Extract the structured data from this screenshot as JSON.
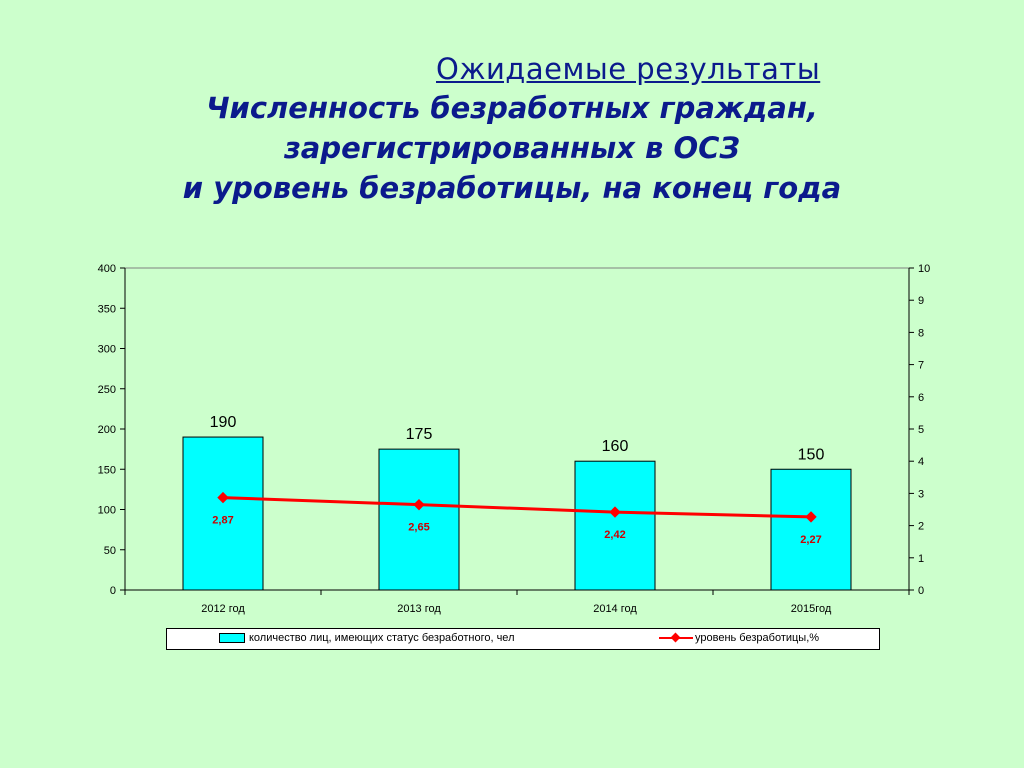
{
  "heading": {
    "overtitle": "Ожидаемые результаты",
    "title_lines": [
      "Численность безработных граждан,",
      "зарегистрированных в ОСЗ",
      "и уровень безработицы, на конец года"
    ]
  },
  "colors": {
    "background": "#ccffcc",
    "heading": "#0b1a8c",
    "bar_fill": "#00ffff",
    "line": "#ff0000",
    "line_label": "#cc0000"
  },
  "chart_data": {
    "type": "bar",
    "categories": [
      "2012 год",
      "2013 год",
      "2014 год",
      "2015год"
    ],
    "series": [
      {
        "name": "количество лиц, имеющих статус безработного, чел",
        "type": "bar",
        "axis": "left",
        "values": [
          190,
          175,
          160,
          150
        ],
        "labels": [
          "190",
          "175",
          "160",
          "150"
        ]
      },
      {
        "name": "уровень безработицы,%",
        "type": "line",
        "axis": "right",
        "values": [
          2.87,
          2.65,
          2.42,
          2.27
        ],
        "labels": [
          "2,87",
          "2,65",
          "2,42",
          "2,27"
        ]
      }
    ],
    "y_left": {
      "range": [
        0,
        400
      ],
      "ticks": [
        "0",
        "50",
        "100",
        "150",
        "200",
        "250",
        "300",
        "350",
        "400"
      ]
    },
    "y_right": {
      "range": [
        0,
        10
      ],
      "ticks": [
        "0",
        "1",
        "2",
        "3",
        "4",
        "5",
        "6",
        "7",
        "8",
        "9",
        "10"
      ]
    },
    "grid": false,
    "legend_placement": "bottom"
  }
}
